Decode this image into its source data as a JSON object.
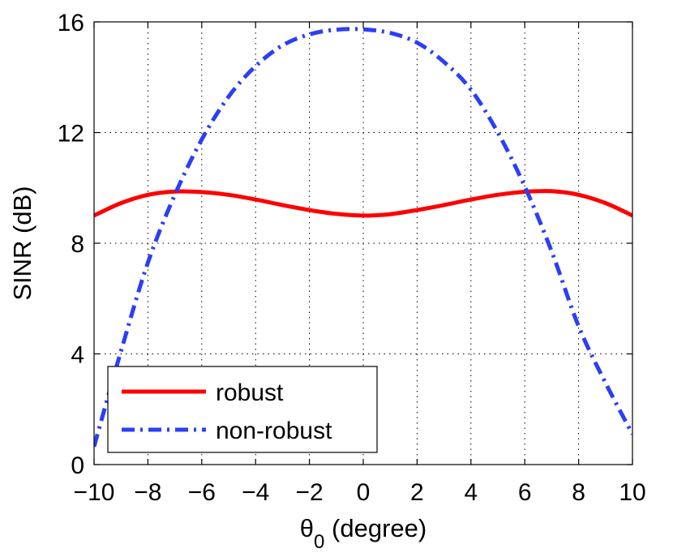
{
  "chart_data": {
    "type": "line",
    "xlabel": "θ",
    "xlabel_subscript": "0",
    "xlabel_suffix": " (degree)",
    "ylabel": "SINR (dB)",
    "xlim": [
      -10,
      10
    ],
    "ylim": [
      0,
      16
    ],
    "xticks": [
      -10,
      -8,
      -6,
      -4,
      -2,
      0,
      2,
      4,
      6,
      8,
      10
    ],
    "xtick_labels": [
      "−10",
      "−8",
      "−6",
      "−4",
      "−2",
      "0",
      "2",
      "4",
      "6",
      "8",
      "10"
    ],
    "yticks": [
      0,
      4,
      8,
      12,
      16
    ],
    "ytick_labels": [
      "0",
      "4",
      "8",
      "12",
      "16"
    ],
    "grid": true,
    "legend_position": "bottom-left",
    "x": [
      -10,
      -9,
      -8,
      -7,
      -6,
      -5,
      -4,
      -3,
      -2,
      -1,
      0,
      1,
      2,
      3,
      4,
      5,
      6,
      7,
      8,
      9,
      10
    ],
    "series": [
      {
        "name": "robust",
        "color": "#ff0000",
        "style": "solid",
        "values": [
          9.0,
          9.45,
          9.75,
          9.87,
          9.85,
          9.75,
          9.58,
          9.38,
          9.2,
          9.06,
          9.0,
          9.05,
          9.2,
          9.38,
          9.58,
          9.75,
          9.86,
          9.88,
          9.75,
          9.45,
          9.0
        ]
      },
      {
        "name": "non-robust",
        "color": "#2b3ff5",
        "style": "dashdot",
        "values": [
          0.65,
          4.1,
          7.3,
          9.75,
          11.75,
          13.3,
          14.4,
          15.15,
          15.55,
          15.72,
          15.73,
          15.6,
          15.25,
          14.55,
          13.55,
          12.0,
          10.05,
          7.7,
          5.0,
          2.95,
          1.1
        ]
      }
    ]
  }
}
